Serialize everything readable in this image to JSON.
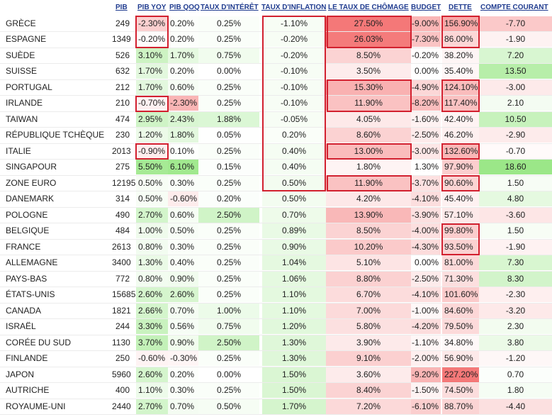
{
  "headers": {
    "pib": "PIB",
    "pib_yoy": "PIB YOY",
    "pib_qoq": "PIB QOQ",
    "taux_interet": "TAUX D'INTÉRÊT",
    "taux_inflation": "TAUX D'INFLATION",
    "chomage": "LE TAUX DE CHÔMAGE",
    "budget": "BUDGET",
    "dette": "DETTE",
    "compte_courant": "COMPTE COURANT"
  },
  "colors": {
    "header_text": "#1f3b8f",
    "highlight_border": "#d2202f"
  },
  "rows": [
    {
      "country": "GRÈCE",
      "pib": "249",
      "pib_yoy": "-2.30%",
      "pib_qoq": "0.20%",
      "taux_interet": "0.25%",
      "taux_inflation": "-1.10%",
      "chomage": "27.50%",
      "budget": "-9.00%",
      "dette": "156.90%",
      "compte_courant": "-7.70"
    },
    {
      "country": "ESPAGNE",
      "pib": "1349",
      "pib_yoy": "-0.20%",
      "pib_qoq": "0.20%",
      "taux_interet": "0.25%",
      "taux_inflation": "-0.20%",
      "chomage": "26.03%",
      "budget": "-7.30%",
      "dette": "86.00%",
      "compte_courant": "-1.90"
    },
    {
      "country": "SUÈDE",
      "pib": "526",
      "pib_yoy": "3.10%",
      "pib_qoq": "1.70%",
      "taux_interet": "0.75%",
      "taux_inflation": "-0.20%",
      "chomage": "8.50%",
      "budget": "-0.20%",
      "dette": "38.20%",
      "compte_courant": "7.20"
    },
    {
      "country": "SUISSE",
      "pib": "632",
      "pib_yoy": "1.70%",
      "pib_qoq": "0.20%",
      "taux_interet": "0.00%",
      "taux_inflation": "-0.10%",
      "chomage": "3.50%",
      "budget": "0.00%",
      "dette": "35.40%",
      "compte_courant": "13.50"
    },
    {
      "country": "PORTUGAL",
      "pib": "212",
      "pib_yoy": "1.70%",
      "pib_qoq": "0.60%",
      "taux_interet": "0.25%",
      "taux_inflation": "-0.10%",
      "chomage": "15.30%",
      "budget": "-4.90%",
      "dette": "124.10%",
      "compte_courant": "-3.00"
    },
    {
      "country": "IRLANDE",
      "pib": "210",
      "pib_yoy": "-0.70%",
      "pib_qoq": "-2.30%",
      "taux_interet": "0.25%",
      "taux_inflation": "-0.10%",
      "chomage": "11.90%",
      "budget": "-8.20%",
      "dette": "117.40%",
      "compte_courant": "2.10"
    },
    {
      "country": "TAIWAN",
      "pib": "474",
      "pib_yoy": "2.95%",
      "pib_qoq": "2.43%",
      "taux_interet": "1.88%",
      "taux_inflation": "-0.05%",
      "chomage": "4.05%",
      "budget": "-1.60%",
      "dette": "42.40%",
      "compte_courant": "10.50"
    },
    {
      "country": "RÉPUBLIQUE TCHÈQUE",
      "pib": "230",
      "pib_yoy": "1.20%",
      "pib_qoq": "1.80%",
      "taux_interet": "0.05%",
      "taux_inflation": "0.20%",
      "chomage": "8.60%",
      "budget": "-2.50%",
      "dette": "46.20%",
      "compte_courant": "-2.90"
    },
    {
      "country": "ITALIE",
      "pib": "2013",
      "pib_yoy": "-0.90%",
      "pib_qoq": "0.10%",
      "taux_interet": "0.25%",
      "taux_inflation": "0.40%",
      "chomage": "13.00%",
      "budget": "-3.00%",
      "dette": "132.60%",
      "compte_courant": "-0.70"
    },
    {
      "country": "SINGAPOUR",
      "pib": "275",
      "pib_yoy": "5.50%",
      "pib_qoq": "6.10%",
      "taux_interet": "0.15%",
      "taux_inflation": "0.40%",
      "chomage": "1.80%",
      "budget": "1.30%",
      "dette": "97.90%",
      "compte_courant": "18.60"
    },
    {
      "country": "ZONE EURO",
      "pib": "12195",
      "pib_yoy": "0.50%",
      "pib_qoq": "0.30%",
      "taux_interet": "0.25%",
      "taux_inflation": "0.50%",
      "chomage": "11.90%",
      "budget": "-3.70%",
      "dette": "90.60%",
      "compte_courant": "1.50"
    },
    {
      "country": "DANEMARK",
      "pib": "314",
      "pib_yoy": "0.50%",
      "pib_qoq": "-0.60%",
      "taux_interet": "0.20%",
      "taux_inflation": "0.50%",
      "chomage": "4.20%",
      "budget": "-4.10%",
      "dette": "45.40%",
      "compte_courant": "4.80"
    },
    {
      "country": "POLOGNE",
      "pib": "490",
      "pib_yoy": "2.70%",
      "pib_qoq": "0.60%",
      "taux_interet": "2.50%",
      "taux_inflation": "0.70%",
      "chomage": "13.90%",
      "budget": "-3.90%",
      "dette": "57.10%",
      "compte_courant": "-3.60"
    },
    {
      "country": "BELGIQUE",
      "pib": "484",
      "pib_yoy": "1.00%",
      "pib_qoq": "0.50%",
      "taux_interet": "0.25%",
      "taux_inflation": "0.89%",
      "chomage": "8.50%",
      "budget": "-4.00%",
      "dette": "99.80%",
      "compte_courant": "1.50"
    },
    {
      "country": "FRANCE",
      "pib": "2613",
      "pib_yoy": "0.80%",
      "pib_qoq": "0.30%",
      "taux_interet": "0.25%",
      "taux_inflation": "0.90%",
      "chomage": "10.20%",
      "budget": "-4.30%",
      "dette": "93.50%",
      "compte_courant": "-1.90"
    },
    {
      "country": "ALLEMAGNE",
      "pib": "3400",
      "pib_yoy": "1.30%",
      "pib_qoq": "0.40%",
      "taux_interet": "0.25%",
      "taux_inflation": "1.04%",
      "chomage": "5.10%",
      "budget": "0.00%",
      "dette": "81.00%",
      "compte_courant": "7.30"
    },
    {
      "country": "PAYS-BAS",
      "pib": "772",
      "pib_yoy": "0.80%",
      "pib_qoq": "0.90%",
      "taux_interet": "0.25%",
      "taux_inflation": "1.06%",
      "chomage": "8.80%",
      "budget": "-2.50%",
      "dette": "71.30%",
      "compte_courant": "8.30"
    },
    {
      "country": "ÉTATS-UNIS",
      "pib": "15685",
      "pib_yoy": "2.60%",
      "pib_qoq": "2.60%",
      "taux_interet": "0.25%",
      "taux_inflation": "1.10%",
      "chomage": "6.70%",
      "budget": "-4.10%",
      "dette": "101.60%",
      "compte_courant": "-2.30"
    },
    {
      "country": "CANADA",
      "pib": "1821",
      "pib_yoy": "2.66%",
      "pib_qoq": "0.70%",
      "taux_interet": "1.00%",
      "taux_inflation": "1.10%",
      "chomage": "7.00%",
      "budget": "-1.00%",
      "dette": "84.60%",
      "compte_courant": "-3.20"
    },
    {
      "country": "ISRAËL",
      "pib": "244",
      "pib_yoy": "3.30%",
      "pib_qoq": "0.56%",
      "taux_interet": "0.75%",
      "taux_inflation": "1.20%",
      "chomage": "5.80%",
      "budget": "-4.20%",
      "dette": "79.50%",
      "compte_courant": "2.30"
    },
    {
      "country": "CORÉE DU SUD",
      "pib": "1130",
      "pib_yoy": "3.70%",
      "pib_qoq": "0.90%",
      "taux_interet": "2.50%",
      "taux_inflation": "1.30%",
      "chomage": "3.90%",
      "budget": "-1.10%",
      "dette": "34.80%",
      "compte_courant": "3.80"
    },
    {
      "country": "FINLANDE",
      "pib": "250",
      "pib_yoy": "-0.60%",
      "pib_qoq": "-0.30%",
      "taux_interet": "0.25%",
      "taux_inflation": "1.30%",
      "chomage": "9.10%",
      "budget": "-2.00%",
      "dette": "56.90%",
      "compte_courant": "-1.20"
    },
    {
      "country": "JAPON",
      "pib": "5960",
      "pib_yoy": "2.60%",
      "pib_qoq": "0.20%",
      "taux_interet": "0.00%",
      "taux_inflation": "1.50%",
      "chomage": "3.60%",
      "budget": "-9.20%",
      "dette": "227.20%",
      "compte_courant": "0.70"
    },
    {
      "country": "AUTRICHE",
      "pib": "400",
      "pib_yoy": "1.10%",
      "pib_qoq": "0.30%",
      "taux_interet": "0.25%",
      "taux_inflation": "1.50%",
      "chomage": "8.40%",
      "budget": "-1.50%",
      "dette": "74.50%",
      "compte_courant": "1.80"
    },
    {
      "country": "ROYAUME-UNI",
      "pib": "2440",
      "pib_yoy": "2.70%",
      "pib_qoq": "0.70%",
      "taux_interet": "0.50%",
      "taux_inflation": "1.70%",
      "chomage": "7.20%",
      "budget": "-6.10%",
      "dette": "88.70%",
      "compte_courant": "-4.40"
    }
  ],
  "highlights": [
    {
      "col": "pib_yoy",
      "rows": [
        0,
        1
      ]
    },
    {
      "col": "pib_yoy",
      "rows": [
        5,
        5
      ]
    },
    {
      "col": "pib_yoy",
      "rows": [
        8,
        8
      ]
    },
    {
      "col": "taux_inflation",
      "rows": [
        0,
        10
      ]
    },
    {
      "col": "chomage",
      "rows": [
        0,
        1
      ]
    },
    {
      "col": "chomage",
      "rows": [
        4,
        5
      ]
    },
    {
      "col": "chomage",
      "rows": [
        8,
        8
      ]
    },
    {
      "col": "chomage",
      "rows": [
        10,
        10
      ]
    },
    {
      "col": "dette",
      "rows": [
        0,
        1
      ]
    },
    {
      "col": "dette",
      "rows": [
        4,
        5
      ]
    },
    {
      "col": "dette",
      "rows": [
        8,
        8
      ]
    },
    {
      "col": "dette",
      "rows": [
        10,
        10
      ]
    },
    {
      "col": "dette",
      "rows": [
        13,
        14
      ]
    }
  ]
}
